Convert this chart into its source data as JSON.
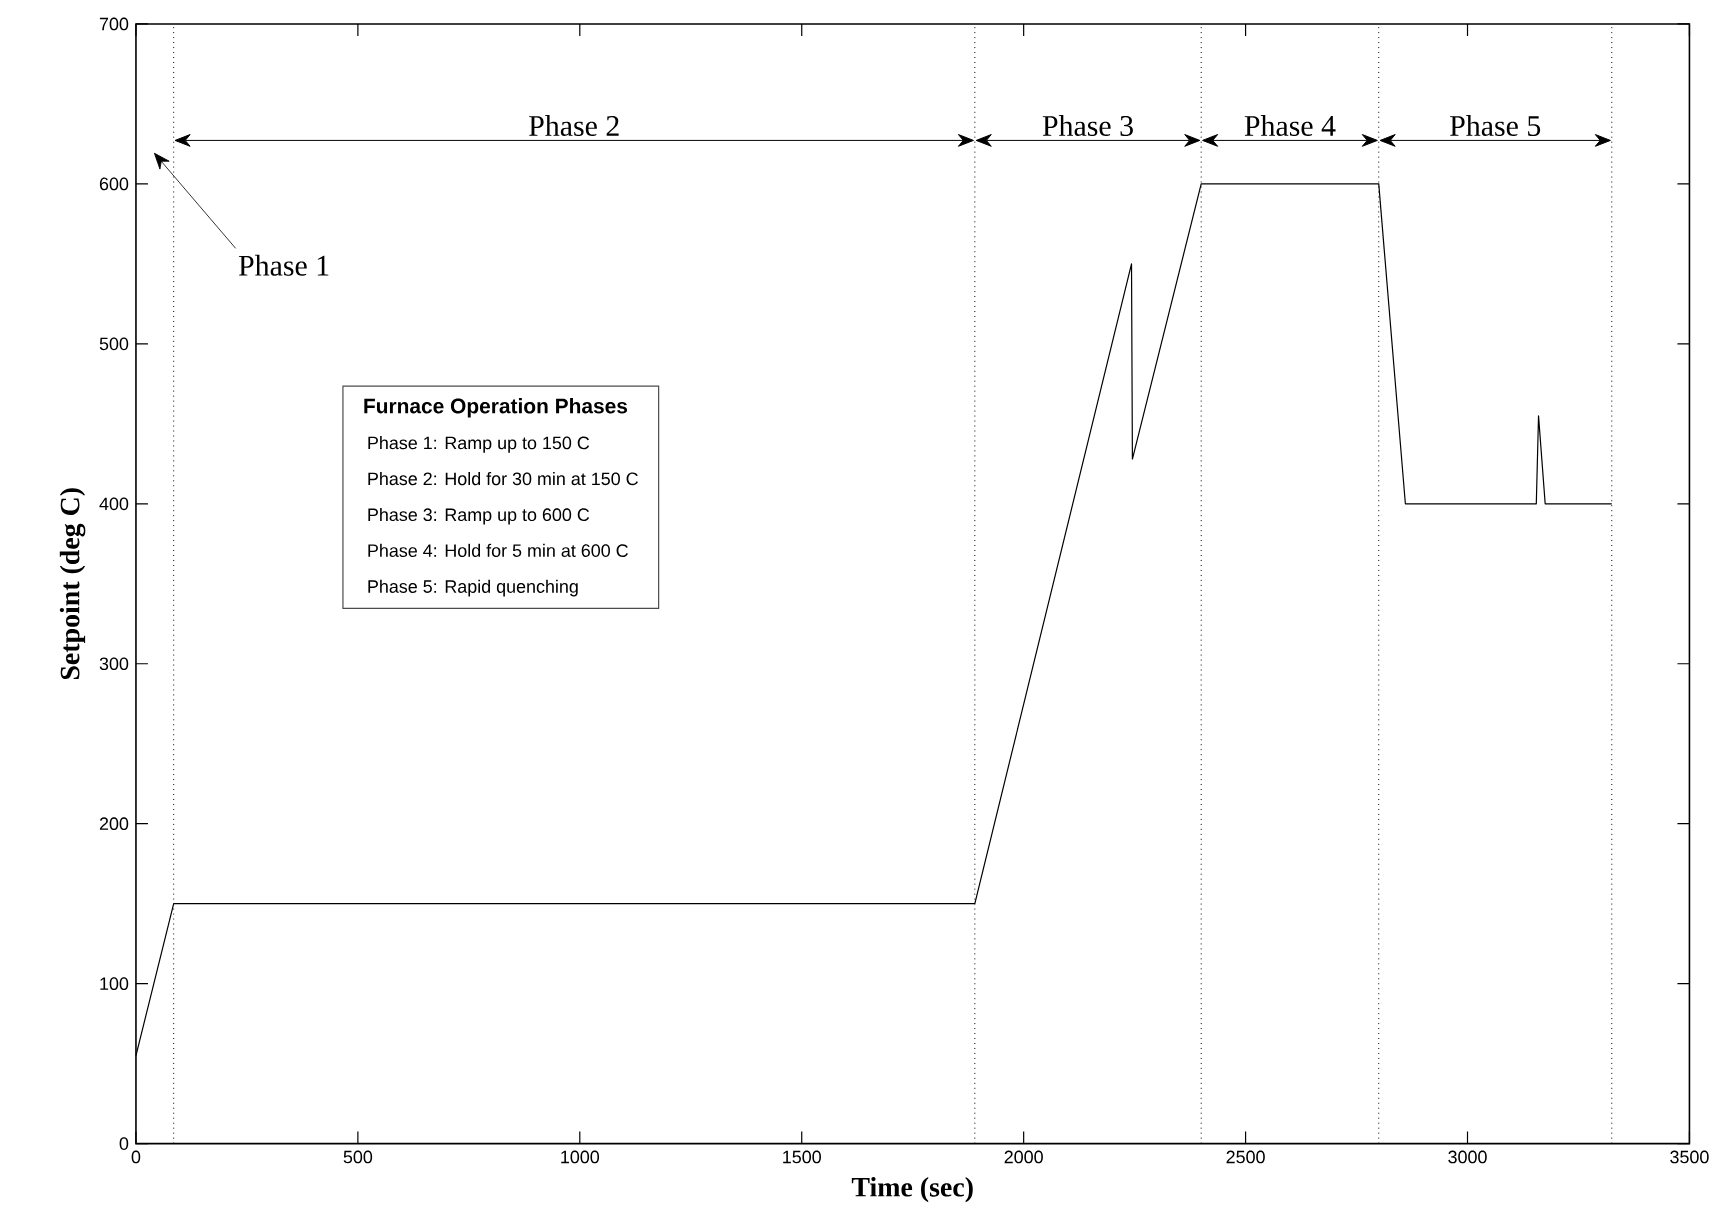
{
  "chart_data": {
    "type": "line",
    "xlabel": "Time (sec)",
    "ylabel": "Setpoint (deg C)",
    "xlim": [
      0,
      3500
    ],
    "ylim": [
      0,
      700
    ],
    "xticks": [
      0,
      500,
      1000,
      1500,
      2000,
      2500,
      3000,
      3500
    ],
    "yticks": [
      0,
      100,
      200,
      300,
      400,
      500,
      600,
      700
    ],
    "grid": false,
    "marker": "none",
    "line_style": "solid",
    "series": [
      {
        "color": "#000000",
        "x": [
          0,
          85,
          1890,
          2243,
          2245,
          2400,
          2800,
          2860,
          3155,
          3160,
          3175,
          3325
        ],
        "values": [
          55,
          150,
          150,
          550,
          428,
          600,
          600,
          400,
          400,
          455,
          400,
          400
        ]
      }
    ],
    "ref_lines": [
      {
        "axis": "x",
        "value": 85,
        "color": "#000000",
        "line_style": "dotted"
      },
      {
        "axis": "x",
        "value": 1890,
        "color": "#000000",
        "line_style": "dotted"
      },
      {
        "axis": "x",
        "value": 2400,
        "color": "#000000",
        "line_style": "dotted"
      },
      {
        "axis": "x",
        "value": 2800,
        "color": "#000000",
        "line_style": "dotted"
      },
      {
        "axis": "x",
        "value": 3325,
        "color": "#000000",
        "line_style": "dotted"
      }
    ],
    "annotations": [
      "Phase 1",
      "Phase 2",
      "Phase 3",
      "Phase 4",
      "Phase 5",
      "Furnace Operation Phases",
      "Phase 1: Ramp up to 150 C",
      "Phase 2: Hold for 30 min at 150 C",
      "Phase 3: Ramp up to 600 C",
      "Phase 4: Hold for 5 min at 600 C",
      "Phase 5: Rapid quenching"
    ]
  }
}
